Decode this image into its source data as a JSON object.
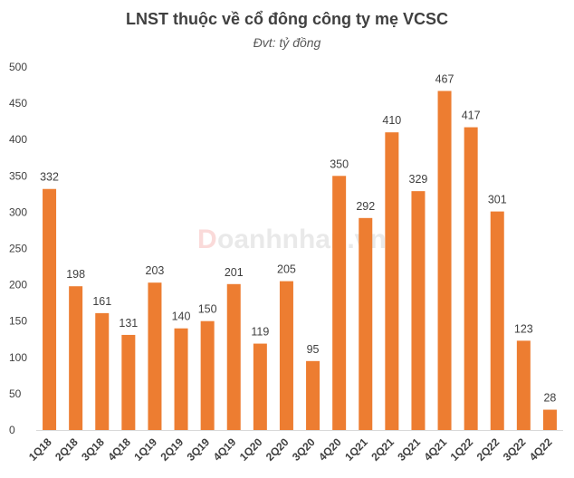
{
  "watermark": {
    "brand_mark": "D",
    "text": "oanhnhan.vn"
  },
  "colors": {
    "bar": "#ED7D31",
    "axis": "#D9D9D9",
    "text": "#404040"
  },
  "chart_data": {
    "type": "bar",
    "title": "LNST thuộc về cổ đông công ty mẹ VCSC",
    "subtitle": "Đvt: tỷ đồng",
    "xlabel": "",
    "ylabel": "",
    "ylim": [
      0,
      500
    ],
    "yticks": [
      0,
      50,
      100,
      150,
      200,
      250,
      300,
      350,
      400,
      450,
      500
    ],
    "grid": false,
    "categories": [
      "1Q18",
      "2Q18",
      "3Q18",
      "4Q18",
      "1Q19",
      "2Q19",
      "3Q19",
      "4Q19",
      "1Q20",
      "2Q20",
      "3Q20",
      "4Q20",
      "1Q21",
      "2Q21",
      "3Q21",
      "4Q21",
      "1Q22",
      "2Q22",
      "3Q22",
      "4Q22"
    ],
    "values": [
      332,
      198,
      161,
      131,
      203,
      140,
      150,
      201,
      119,
      205,
      95,
      350,
      292,
      410,
      329,
      467,
      417,
      301,
      123,
      28
    ]
  }
}
